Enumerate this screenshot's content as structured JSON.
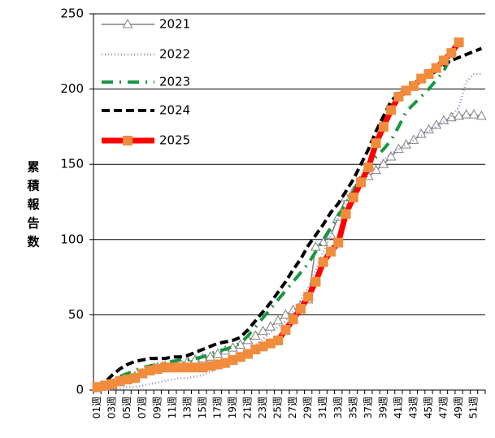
{
  "chart_data": {
    "type": "line",
    "ylabel": "累積報告数",
    "categories": [
      "01週",
      null,
      "03週",
      null,
      "05週",
      null,
      "07週",
      null,
      "09週",
      null,
      "11週",
      null,
      "13週",
      null,
      "15週",
      null,
      "17週",
      null,
      "19週",
      null,
      "21週",
      null,
      "23週",
      null,
      "25週",
      null,
      "27週",
      null,
      "29週",
      null,
      "31週",
      null,
      "33週",
      null,
      "35週",
      null,
      "37週",
      null,
      "39週",
      null,
      "41週",
      null,
      "43週",
      null,
      "45週",
      null,
      "47週",
      null,
      "49週",
      null,
      "51週",
      null
    ],
    "series": [
      {
        "name": "2021",
        "color": "#808080",
        "marker": "triangle",
        "style": "solid",
        "values": [
          1,
          2,
          3,
          5,
          7,
          9,
          11,
          13,
          15,
          16,
          17,
          18,
          19,
          20,
          21,
          22,
          24,
          26,
          28,
          30,
          33,
          36,
          39,
          42,
          46,
          50,
          53,
          56,
          60,
          95,
          98,
          103,
          115,
          128,
          132,
          138,
          142,
          146,
          150,
          155,
          160,
          163,
          166,
          170,
          173,
          176,
          179,
          181,
          182,
          183,
          183,
          182
        ]
      },
      {
        "name": "2022",
        "color": "#8c8cc8",
        "marker": "none",
        "style": "dotted",
        "values": [
          0,
          0,
          1,
          1,
          2,
          2,
          3,
          4,
          5,
          6,
          7,
          8,
          8,
          9,
          10,
          12,
          14,
          16,
          19,
          22,
          26,
          30,
          34,
          38,
          42,
          46,
          52,
          60,
          68,
          80,
          92,
          103,
          115,
          126,
          132,
          138,
          143,
          148,
          153,
          157,
          160,
          163,
          166,
          169,
          172,
          175,
          178,
          182,
          188,
          205,
          210,
          210
        ]
      },
      {
        "name": "2023",
        "color": "#1a9641",
        "marker": "none",
        "style": "dashdot",
        "values": [
          1,
          3,
          6,
          9,
          11,
          13,
          15,
          16,
          17,
          18,
          19,
          20,
          20,
          21,
          22,
          24,
          26,
          27,
          29,
          31,
          36,
          42,
          48,
          54,
          60,
          66,
          72,
          78,
          84,
          92,
          100,
          108,
          116,
          124,
          132,
          142,
          150,
          155,
          160,
          166,
          175,
          185,
          190,
          195,
          200,
          206,
          212,
          222,
          232,
          null,
          null,
          null
        ]
      },
      {
        "name": "2024",
        "color": "#000000",
        "marker": "none",
        "style": "dashed",
        "values": [
          2,
          5,
          10,
          14,
          17,
          19,
          20,
          21,
          21,
          21,
          22,
          22,
          23,
          25,
          27,
          29,
          31,
          32,
          33,
          35,
          40,
          46,
          52,
          58,
          65,
          72,
          80,
          87,
          96,
          103,
          110,
          118,
          124,
          132,
          140,
          150,
          160,
          172,
          182,
          192,
          197,
          200,
          203,
          206,
          209,
          212,
          216,
          219,
          221,
          223,
          225,
          227
        ]
      },
      {
        "name": "2025",
        "color": "#ff0000",
        "marker_color": "#f08c3c",
        "marker": "square",
        "style": "thick",
        "values": [
          2,
          3,
          4,
          6,
          7,
          8,
          11,
          13,
          14,
          15,
          15,
          15,
          15,
          15,
          15,
          16,
          17,
          18,
          20,
          22,
          24,
          27,
          29,
          31,
          33,
          40,
          47,
          54,
          62,
          72,
          85,
          92,
          98,
          117,
          128,
          138,
          148,
          164,
          175,
          186,
          195,
          199,
          202,
          207,
          210,
          214,
          219,
          224,
          231,
          null,
          null,
          null
        ]
      }
    ],
    "ylim": [
      0,
      250
    ],
    "yticks": [
      0,
      50,
      100,
      150,
      200,
      250
    ],
    "grid": true,
    "legend": "upper left"
  }
}
